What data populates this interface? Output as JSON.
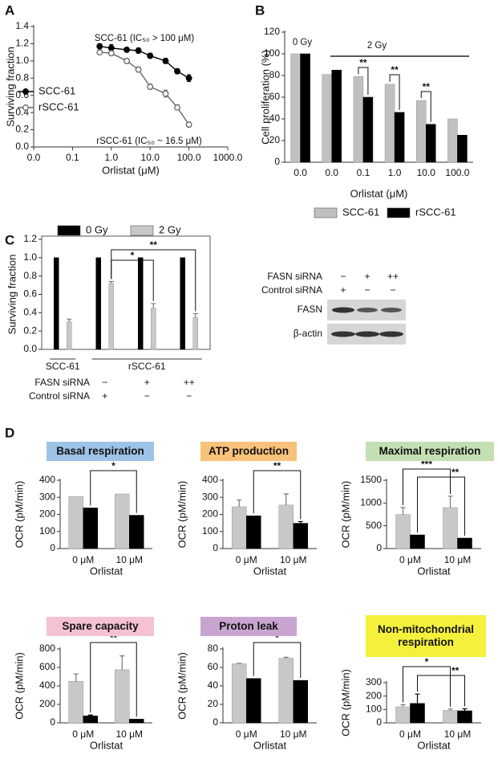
{
  "chart_data": [
    {
      "type": "line",
      "panel": "A",
      "xlabel": "Orlistat (μM)",
      "ylabel": "Surviving fraction",
      "xscale": "log",
      "xlim": [
        0.01,
        1000
      ],
      "xticks": [
        {
          "value": 0.01,
          "label": "0.0"
        },
        0.1,
        {
          "value": 1,
          "label": "1.0"
        },
        {
          "value": 10,
          "label": "10.0"
        },
        {
          "value": 100,
          "label": "100.0"
        },
        {
          "value": 1000,
          "label": "1000.0"
        }
      ],
      "ylim": [
        0,
        1.4
      ],
      "yticks": [
        {
          "value": 0,
          "label": "0.0"
        },
        0.2,
        0.4,
        0.6,
        0.8,
        {
          "value": 1,
          "label": "1.0"
        },
        1.2,
        1.4
      ],
      "x": [
        0.5,
        1,
        2.5,
        5,
        10,
        25,
        50,
        100
      ],
      "series": [
        {
          "name": "SCC-61",
          "color": "#000000",
          "marker": "filled",
          "values": [
            1.17,
            1.15,
            1.13,
            1.12,
            1.06,
            1.0,
            0.88,
            0.8
          ],
          "errors": [
            0.03,
            0.04,
            0.02,
            0.03,
            0.03,
            0.03,
            0.03,
            0.04
          ]
        },
        {
          "name": "rSCC-61",
          "color": "#666666",
          "marker": "open",
          "values": [
            1.1,
            1.09,
            1.0,
            0.9,
            0.7,
            0.62,
            0.46,
            0.26
          ],
          "errors": [
            0.02,
            0.03,
            0.03,
            0.03,
            0.03,
            0.04,
            0.03,
            0.03
          ]
        }
      ],
      "annotations": [
        "SCC-61 (IC₅₀ > 100 μM)",
        "rSCC-61 (IC₅₀ ~ 16.5 μM)"
      ]
    },
    {
      "type": "bar",
      "panel": "B",
      "xlabel": "Orlistat (μM)",
      "ylabel": "Cell proliferation (%)",
      "categories": [
        "0.0",
        "0.0",
        "0.1",
        "1.0",
        "10.0",
        "100.0"
      ],
      "ylim": [
        0,
        120
      ],
      "yticks": [
        0,
        20,
        40,
        60,
        80,
        100,
        120
      ],
      "series": [
        {
          "name": "SCC-61",
          "color": "#c0c0c0",
          "values": [
            100,
            81,
            79,
            72,
            57,
            40
          ]
        },
        {
          "name": "rSCC-61",
          "color": "#000000",
          "values": [
            100,
            85,
            60,
            46,
            35,
            25
          ]
        }
      ],
      "annotations": [
        "0 Gy",
        "2 Gy",
        "**",
        "**",
        "**"
      ]
    },
    {
      "type": "bar",
      "panel": "C",
      "ylabel": "Surviving fraction",
      "ylim": [
        0,
        1.2
      ],
      "yticks": [
        {
          "value": 0,
          "label": "0.0"
        },
        0.2,
        0.4,
        0.6,
        0.8,
        {
          "value": 1,
          "label": "1.0"
        },
        1.2
      ],
      "series": [
        {
          "name": "0 Gy",
          "color": "#000000",
          "values": [
            1,
            1,
            1,
            1
          ]
        },
        {
          "name": "2 Gy",
          "color": "#c8c8c8",
          "values": [
            0.3,
            0.72,
            0.45,
            0.35
          ],
          "errors": [
            0.03,
            0.02,
            0.05,
            0.04
          ]
        }
      ],
      "groups": [
        "SCC-61",
        "rSCC-61"
      ],
      "rows": [
        {
          "label": "FASN siRNA",
          "values": [
            null,
            "−",
            "+",
            "++"
          ]
        },
        {
          "label": "Control siRNA",
          "values": [
            null,
            "+",
            "−",
            "−"
          ]
        }
      ],
      "annotations": [
        "*",
        "**"
      ]
    },
    {
      "type": "bar",
      "panel": "D",
      "title": "Basal respiration",
      "title_color": "#9dc3e6",
      "ylabel": "OCR (pM/min)",
      "xlabel": "Orlistat",
      "categories": [
        "0 μM",
        "10 μM"
      ],
      "ylim": [
        0,
        400
      ],
      "yticks": [
        0,
        100,
        200,
        300,
        400
      ],
      "series": [
        {
          "color": "#c8c8c8",
          "values": [
            305,
            320
          ]
        },
        {
          "color": "#000000",
          "values": [
            238,
            195
          ]
        }
      ],
      "annotations": [
        "*"
      ]
    },
    {
      "type": "bar",
      "title": "ATP production",
      "title_color": "#f8c27a",
      "ylabel": "OCR (pM/min)",
      "xlabel": "Orlistat",
      "categories": [
        "0 μM",
        "10 μM"
      ],
      "ylim": [
        0,
        400
      ],
      "yticks": [
        0,
        100,
        200,
        300,
        400
      ],
      "series": [
        {
          "color": "#c8c8c8",
          "values": [
            245,
            255
          ],
          "errors": [
            40,
            65
          ]
        },
        {
          "color": "#000000",
          "values": [
            192,
            148
          ],
          "errors": [
            null,
            10
          ]
        }
      ],
      "annotations": [
        "**"
      ]
    },
    {
      "type": "bar",
      "title": "Maximal respiration",
      "title_color": "#c5dfb4",
      "ylabel": "OCR (pM/min)",
      "xlabel": "Orlistat",
      "categories": [
        "0 μM",
        "10 μM"
      ],
      "ylim": [
        0,
        1500
      ],
      "yticks": [
        0,
        500,
        1000,
        1500
      ],
      "series": [
        {
          "color": "#c8c8c8",
          "values": [
            750,
            900
          ],
          "errors": [
            150,
            250
          ]
        },
        {
          "color": "#000000",
          "values": [
            300,
            230
          ]
        }
      ],
      "annotations": [
        "***",
        "**"
      ]
    },
    {
      "type": "bar",
      "title": "Spare capacity",
      "title_color": "#f4c2d2",
      "ylabel": "OCR (pM/min)",
      "xlabel": "Orlistat",
      "categories": [
        "0 μM",
        "10 μM"
      ],
      "ylim": [
        0,
        800
      ],
      "yticks": [
        0,
        200,
        400,
        600,
        800
      ],
      "series": [
        {
          "color": "#c8c8c8",
          "values": [
            450,
            575
          ],
          "errors": [
            80,
            150
          ]
        },
        {
          "color": "#000000",
          "values": [
            75,
            40
          ],
          "errors": [
            10,
            null
          ]
        }
      ],
      "annotations": [
        "**"
      ]
    },
    {
      "type": "bar",
      "title": "Proton leak",
      "title_color": "#c7a5d0",
      "ylabel": "OCR (pM/min)",
      "xlabel": "Orlistat",
      "categories": [
        "0 μM",
        "10 μM"
      ],
      "ylim": [
        0,
        80
      ],
      "yticks": [
        0,
        20,
        40,
        60,
        80
      ],
      "series": [
        {
          "color": "#c8c8c8",
          "values": [
            64,
            70
          ],
          "errors": [
            0.5,
            1
          ]
        },
        {
          "color": "#000000",
          "values": [
            48,
            46
          ]
        }
      ],
      "annotations": [
        "*"
      ]
    },
    {
      "type": "bar",
      "title": "Non-mitochondrial respiration",
      "title_color": "#f5f03c",
      "ylabel": "OCR (pM/min)",
      "xlabel": "Orlistat",
      "categories": [
        "0 μM",
        "10 μM"
      ],
      "ylim": [
        0,
        300
      ],
      "yticks": [
        0,
        100,
        200,
        300
      ],
      "series": [
        {
          "color": "#c8c8c8",
          "values": [
            120,
            93
          ],
          "errors": [
            15,
            10
          ]
        },
        {
          "color": "#000000",
          "values": [
            145,
            90
          ],
          "errors": [
            70,
            15
          ]
        }
      ],
      "annotations": [
        "*",
        "**"
      ]
    }
  ],
  "blot": {
    "rows": [
      {
        "label": "FASN siRNA",
        "values": [
          "−",
          "+",
          "++"
        ]
      },
      {
        "label": "Control siRNA",
        "values": [
          "+",
          "−",
          "−"
        ]
      }
    ],
    "bands": [
      "FASN",
      "β-actin"
    ]
  }
}
